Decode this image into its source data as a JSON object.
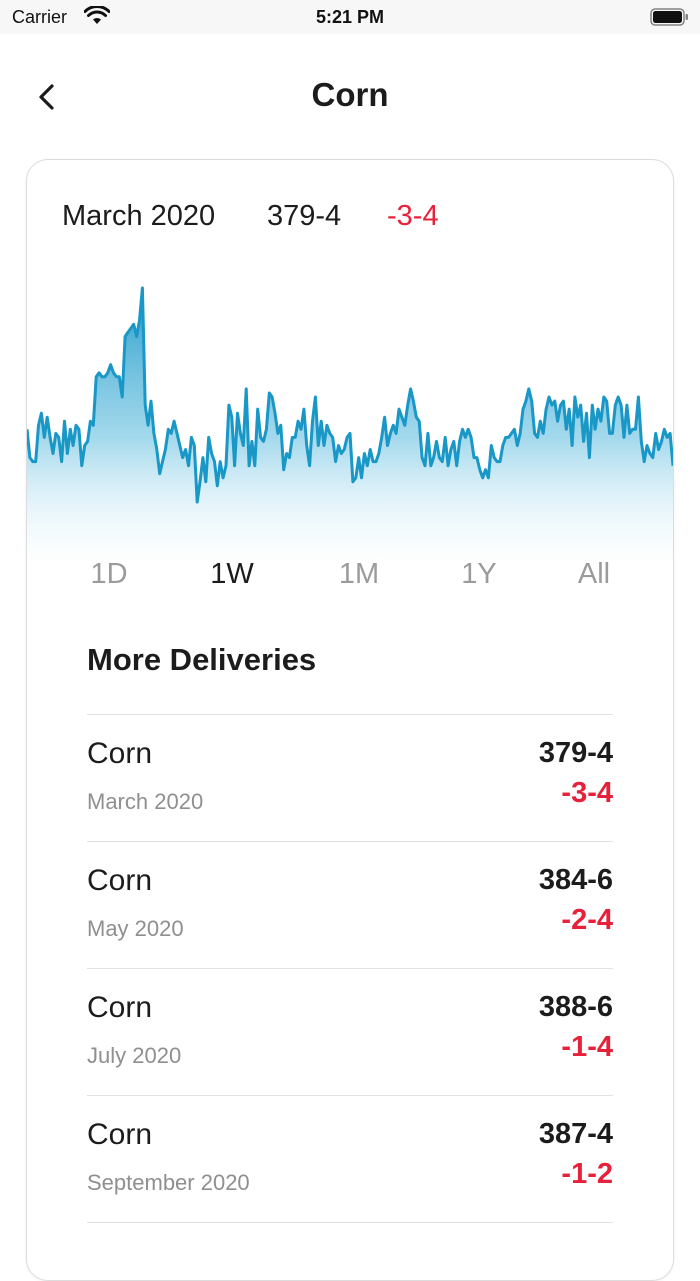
{
  "status_bar": {
    "carrier": "Carrier",
    "time": "5:21 PM"
  },
  "header": {
    "title": "Corn",
    "back_icon": "chevron-left-icon"
  },
  "quote": {
    "month": "March 2020",
    "price": "379-4",
    "change": "-3-4"
  },
  "colors": {
    "accent": "#1997c6",
    "negative": "#e8213a"
  },
  "chart_data": {
    "type": "area",
    "title": "",
    "xlabel": "",
    "ylabel": "",
    "grid": false,
    "values": [
      393,
      386,
      385,
      385,
      394,
      397,
      391,
      396,
      391,
      387,
      392,
      391,
      385,
      395,
      387,
      393,
      389,
      394,
      393,
      384,
      389,
      390,
      395,
      394,
      406,
      407,
      406,
      406,
      407,
      409,
      407,
      406,
      406,
      401,
      416,
      417,
      418,
      419,
      416,
      420,
      428,
      399,
      394,
      400,
      392,
      388,
      382,
      385,
      388,
      393,
      392,
      395,
      392,
      389,
      386,
      388,
      384,
      391,
      389,
      375,
      380,
      386,
      380,
      391,
      387,
      385,
      379,
      385,
      381,
      384,
      399,
      396,
      384,
      397,
      392,
      389,
      403,
      384,
      390,
      384,
      398,
      391,
      390,
      393,
      402,
      401,
      397,
      392,
      394,
      383,
      387,
      386,
      391,
      391,
      395,
      393,
      398,
      389,
      384,
      395,
      401,
      389,
      395,
      389,
      394,
      392,
      391,
      385,
      389,
      387,
      388,
      391,
      392,
      380,
      381,
      386,
      381,
      387,
      384,
      388,
      385,
      385,
      387,
      391,
      396,
      389,
      392,
      394,
      392,
      398,
      396,
      394,
      399,
      403,
      400,
      396,
      395,
      386,
      384,
      392,
      384,
      386,
      390,
      386,
      385,
      391,
      384,
      388,
      390,
      384,
      390,
      393,
      391,
      393,
      391,
      386,
      386,
      383,
      381,
      383,
      381,
      389,
      386,
      385,
      385,
      389,
      391,
      391,
      392,
      393,
      389,
      392,
      398,
      400,
      403,
      400,
      392,
      391,
      395,
      392,
      398,
      401,
      399,
      400,
      395,
      399,
      400,
      393,
      398,
      389,
      401,
      396,
      399,
      390,
      397,
      386,
      399,
      393,
      398,
      395,
      401,
      400,
      392,
      392,
      399,
      401,
      399,
      391,
      399,
      392,
      393,
      393,
      401,
      390,
      385,
      389,
      387,
      386,
      392,
      388,
      390,
      393,
      391,
      392,
      384
    ]
  },
  "ranges": [
    "1D",
    "1W",
    "1M",
    "1Y",
    "All"
  ],
  "active_range": "1W",
  "deliveries": {
    "title": "More Deliveries",
    "items": [
      {
        "name": "Corn",
        "month": "March 2020",
        "price": "379-4",
        "change": "-3-4"
      },
      {
        "name": "Corn",
        "month": "May 2020",
        "price": "384-6",
        "change": "-2-4"
      },
      {
        "name": "Corn",
        "month": "July 2020",
        "price": "388-6",
        "change": "-1-4"
      },
      {
        "name": "Corn",
        "month": "September 2020",
        "price": "387-4",
        "change": "-1-2"
      }
    ]
  }
}
